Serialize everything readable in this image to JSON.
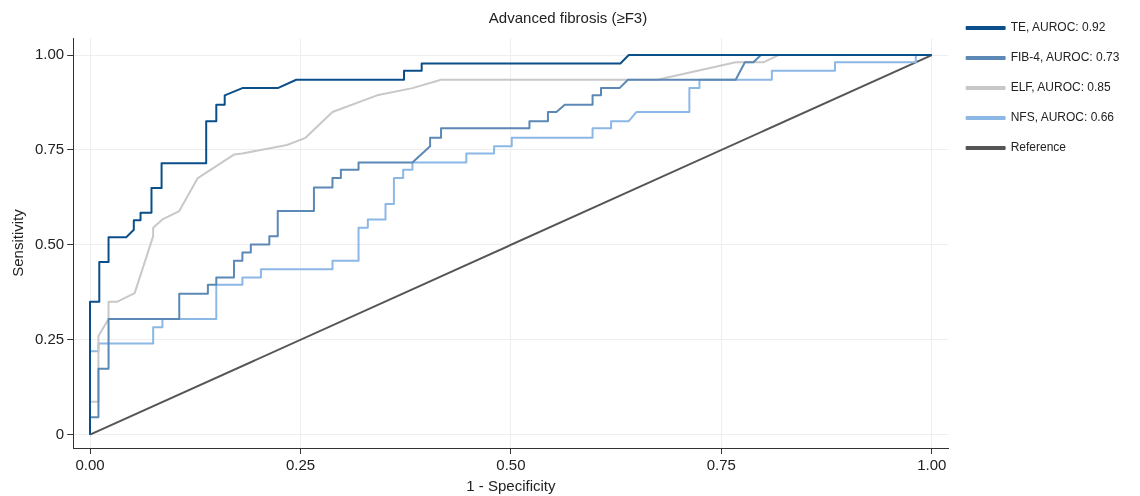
{
  "chart_data": {
    "type": "line",
    "title": "Advanced fibrosis (≥F3)",
    "xlabel": "1 - Specificity",
    "ylabel": "Sensitivity",
    "xlim": [
      -0.02,
      1.02
    ],
    "ylim": [
      -0.035,
      1.045
    ],
    "xticks": [
      {
        "value": 0,
        "label": "0.00"
      },
      0.25,
      {
        "value": 0.5,
        "label": "0.50"
      },
      0.75,
      {
        "value": 1,
        "label": "1.00"
      }
    ],
    "yticks": [
      0,
      0.25,
      {
        "value": 0.5,
        "label": "0.50"
      },
      0.75,
      {
        "value": 1,
        "label": "1.00"
      }
    ],
    "grid": true,
    "legend": "top right",
    "marker": "none",
    "line_style": "solid",
    "series": [
      {
        "name": "TE, AUROC: 0.92",
        "color": "#0b4f8a",
        "x": [
          0,
          0,
          0.011,
          0.011,
          0.022,
          0.022,
          0.043,
          0.052,
          0.052,
          0.06,
          0.06,
          0.073,
          0.073,
          0.085,
          0.085,
          0.138,
          0.138,
          0.15,
          0.15,
          0.16,
          0.16,
          0.181,
          0.223,
          0.245,
          0.373,
          0.373,
          0.394,
          0.394,
          0.63,
          0.64,
          1
        ],
        "values": [
          0,
          0.35,
          0.35,
          0.455,
          0.455,
          0.52,
          0.52,
          0.54,
          0.565,
          0.565,
          0.585,
          0.585,
          0.65,
          0.65,
          0.715,
          0.715,
          0.826,
          0.826,
          0.869,
          0.869,
          0.894,
          0.913,
          0.913,
          0.935,
          0.935,
          0.959,
          0.959,
          0.978,
          0.978,
          1,
          1
        ]
      },
      {
        "name": "FIB-4, AUROC: 0.73",
        "color": "#5b88b5",
        "x": [
          0,
          0,
          0.01,
          0.01,
          0.022,
          0.022,
          0.106,
          0.106,
          0.14,
          0.14,
          0.15,
          0.15,
          0.171,
          0.171,
          0.181,
          0.181,
          0.191,
          0.191,
          0.213,
          0.213,
          0.223,
          0.223,
          0.266,
          0.266,
          0.288,
          0.288,
          0.298,
          0.298,
          0.319,
          0.319,
          0.383,
          0.404,
          0.404,
          0.417,
          0.417,
          0.522,
          0.522,
          0.544,
          0.544,
          0.554,
          0.564,
          0.597,
          0.597,
          0.607,
          0.607,
          0.629,
          0.639,
          0.767,
          0.778,
          0.788,
          0.797,
          1
        ],
        "values": [
          0,
          0.046,
          0.046,
          0.174,
          0.174,
          0.305,
          0.305,
          0.371,
          0.371,
          0.395,
          0.395,
          0.414,
          0.414,
          0.458,
          0.458,
          0.48,
          0.48,
          0.501,
          0.501,
          0.523,
          0.523,
          0.589,
          0.589,
          0.651,
          0.651,
          0.676,
          0.676,
          0.698,
          0.698,
          0.717,
          0.717,
          0.76,
          0.782,
          0.782,
          0.807,
          0.807,
          0.826,
          0.826,
          0.85,
          0.85,
          0.869,
          0.869,
          0.894,
          0.894,
          0.913,
          0.913,
          0.935,
          0.935,
          0.981,
          0.981,
          1,
          1
        ]
      },
      {
        "name": "ELF, AUROC: 0.85",
        "color": "#c8c8c8",
        "x": [
          0,
          0,
          0.01,
          0.01,
          0.022,
          0.022,
          0.032,
          0.053,
          0.075,
          0.075,
          0.086,
          0.106,
          0.128,
          0.171,
          0.181,
          0.234,
          0.256,
          0.288,
          0.341,
          0.383,
          0.417,
          0.674,
          0.767,
          0.8,
          0.818,
          1
        ],
        "values": [
          0,
          0.087,
          0.087,
          0.26,
          0.305,
          0.35,
          0.35,
          0.373,
          0.523,
          0.545,
          0.567,
          0.589,
          0.676,
          0.738,
          0.741,
          0.763,
          0.782,
          0.85,
          0.894,
          0.913,
          0.935,
          0.935,
          0.981,
          0.981,
          1,
          1
        ]
      },
      {
        "name": "NFS, AUROC: 0.66",
        "color": "#8cb8e6",
        "x": [
          0,
          0,
          0.01,
          0.01,
          0.075,
          0.075,
          0.086,
          0.086,
          0.15,
          0.15,
          0.181,
          0.181,
          0.203,
          0.203,
          0.288,
          0.288,
          0.319,
          0.319,
          0.33,
          0.33,
          0.351,
          0.351,
          0.361,
          0.361,
          0.372,
          0.372,
          0.383,
          0.383,
          0.447,
          0.447,
          0.48,
          0.48,
          0.501,
          0.501,
          0.597,
          0.597,
          0.619,
          0.619,
          0.64,
          0.649,
          0.712,
          0.712,
          0.724,
          0.724,
          0.81,
          0.81,
          0.885,
          0.885,
          0.981,
          0.981,
          1
        ],
        "values": [
          0,
          0.22,
          0.22,
          0.24,
          0.24,
          0.283,
          0.283,
          0.305,
          0.305,
          0.395,
          0.395,
          0.414,
          0.414,
          0.436,
          0.436,
          0.458,
          0.458,
          0.545,
          0.545,
          0.567,
          0.567,
          0.608,
          0.608,
          0.676,
          0.676,
          0.698,
          0.698,
          0.717,
          0.717,
          0.741,
          0.741,
          0.76,
          0.76,
          0.782,
          0.782,
          0.807,
          0.807,
          0.826,
          0.826,
          0.85,
          0.85,
          0.913,
          0.913,
          0.935,
          0.935,
          0.959,
          0.959,
          0.981,
          0.981,
          1,
          1
        ]
      },
      {
        "name": "Reference",
        "color": "#555555",
        "x": [
          0,
          1
        ],
        "values": [
          0,
          1
        ]
      }
    ]
  }
}
